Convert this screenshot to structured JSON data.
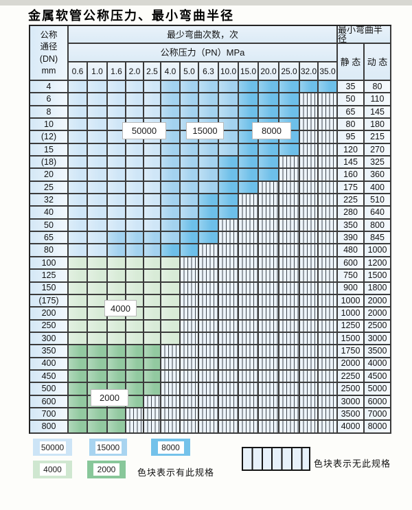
{
  "title": "金属软管公称压力、最小弯曲半径",
  "colors": {
    "zone_50000": "#cfe6f7",
    "zone_15000": "#a3d2ef",
    "zone_8000": "#6dbfe9",
    "zone_4000": "#d8ebd7",
    "zone_2000": "#92c9a0",
    "hatch_bg": "#edf4fa",
    "grid_line": "#3a3a3a"
  },
  "table": {
    "dn_header_lines": [
      "公称",
      "通径",
      "(DN)",
      "mm"
    ],
    "bend_cycles_header": "最少弯曲次数，次",
    "pressure_header": "公称压力（PN）MPa",
    "pressure_columns": [
      "0.6",
      "1.0",
      "1.6",
      "2.0",
      "2.5",
      "4.0",
      "5.0",
      "6.3",
      "10.0",
      "15.0",
      "20.0",
      "25.0",
      "32.0",
      "35.0"
    ],
    "radius_header": "最小弯曲半径",
    "static_header": "静 态",
    "dynamic_header": "动 态",
    "zone_codes": {
      "L": "50000",
      "M": "15000",
      "D": "8000",
      "G": "4000",
      "E": "2000",
      "X": "无此规格"
    },
    "rows": [
      {
        "dn": "4",
        "cells": [
          "L",
          "L",
          "L",
          "L",
          "L",
          "M",
          "M",
          "M",
          "M",
          "D",
          "D",
          "D",
          "D",
          "D"
        ],
        "static": "35",
        "dynamic": "80"
      },
      {
        "dn": "6",
        "cells": [
          "L",
          "L",
          "L",
          "L",
          "L",
          "M",
          "M",
          "M",
          "M",
          "D",
          "D",
          "D",
          "X",
          "X"
        ],
        "static": "50",
        "dynamic": "110"
      },
      {
        "dn": "8",
        "cells": [
          "L",
          "L",
          "L",
          "L",
          "L",
          "M",
          "M",
          "M",
          "M",
          "D",
          "D",
          "D",
          "X",
          "X"
        ],
        "static": "65",
        "dynamic": "145"
      },
      {
        "dn": "10",
        "cells": [
          "L",
          "L",
          "L",
          "L",
          "L",
          "M",
          "M",
          "M",
          "M",
          "D",
          "D",
          "D",
          "X",
          "X"
        ],
        "static": "80",
        "dynamic": "180"
      },
      {
        "dn": "(12)",
        "cells": [
          "L",
          "L",
          "L",
          "L",
          "L",
          "M",
          "M",
          "M",
          "M",
          "D",
          "D",
          "D",
          "X",
          "X"
        ],
        "static": "95",
        "dynamic": "215"
      },
      {
        "dn": "15",
        "cells": [
          "L",
          "L",
          "L",
          "L",
          "L",
          "M",
          "M",
          "M",
          "M",
          "D",
          "D",
          "D",
          "X",
          "X"
        ],
        "static": "120",
        "dynamic": "270"
      },
      {
        "dn": "(18)",
        "cells": [
          "L",
          "L",
          "L",
          "L",
          "L",
          "M",
          "M",
          "M",
          "D",
          "D",
          "D",
          "X",
          "X",
          "X"
        ],
        "static": "145",
        "dynamic": "325"
      },
      {
        "dn": "20",
        "cells": [
          "L",
          "L",
          "L",
          "L",
          "L",
          "M",
          "M",
          "M",
          "D",
          "D",
          "D",
          "X",
          "X",
          "X"
        ],
        "static": "160",
        "dynamic": "360"
      },
      {
        "dn": "25",
        "cells": [
          "L",
          "L",
          "L",
          "L",
          "L",
          "M",
          "M",
          "M",
          "D",
          "D",
          "X",
          "X",
          "X",
          "X"
        ],
        "static": "175",
        "dynamic": "400"
      },
      {
        "dn": "32",
        "cells": [
          "L",
          "L",
          "L",
          "L",
          "L",
          "M",
          "M",
          "D",
          "D",
          "X",
          "X",
          "X",
          "X",
          "X"
        ],
        "static": "225",
        "dynamic": "510"
      },
      {
        "dn": "40",
        "cells": [
          "L",
          "L",
          "L",
          "L",
          "L",
          "M",
          "M",
          "D",
          "D",
          "X",
          "X",
          "X",
          "X",
          "X"
        ],
        "static": "280",
        "dynamic": "640"
      },
      {
        "dn": "50",
        "cells": [
          "L",
          "L",
          "L",
          "L",
          "L",
          "M",
          "D",
          "D",
          "X",
          "X",
          "X",
          "X",
          "X",
          "X"
        ],
        "static": "350",
        "dynamic": "800"
      },
      {
        "dn": "65",
        "cells": [
          "L",
          "L",
          "M",
          "M",
          "M",
          "M",
          "D",
          "D",
          "X",
          "X",
          "X",
          "X",
          "X",
          "X"
        ],
        "static": "390",
        "dynamic": "845"
      },
      {
        "dn": "80",
        "cells": [
          "L",
          "L",
          "M",
          "M",
          "M",
          "D",
          "D",
          "X",
          "X",
          "X",
          "X",
          "X",
          "X",
          "X"
        ],
        "static": "480",
        "dynamic": "1000"
      },
      {
        "dn": "100",
        "cells": [
          "G",
          "G",
          "G",
          "G",
          "G",
          "G",
          "X",
          "X",
          "X",
          "X",
          "X",
          "X",
          "X",
          "X"
        ],
        "static": "600",
        "dynamic": "1200"
      },
      {
        "dn": "125",
        "cells": [
          "G",
          "G",
          "G",
          "G",
          "G",
          "G",
          "X",
          "X",
          "X",
          "X",
          "X",
          "X",
          "X",
          "X"
        ],
        "static": "750",
        "dynamic": "1500"
      },
      {
        "dn": "150",
        "cells": [
          "G",
          "G",
          "G",
          "G",
          "G",
          "G",
          "X",
          "X",
          "X",
          "X",
          "X",
          "X",
          "X",
          "X"
        ],
        "static": "900",
        "dynamic": "1800"
      },
      {
        "dn": "(175)",
        "cells": [
          "G",
          "G",
          "G",
          "G",
          "G",
          "G",
          "X",
          "X",
          "X",
          "X",
          "X",
          "X",
          "X",
          "X"
        ],
        "static": "1000",
        "dynamic": "2000"
      },
      {
        "dn": "200",
        "cells": [
          "G",
          "G",
          "G",
          "G",
          "G",
          "G",
          "X",
          "X",
          "X",
          "X",
          "X",
          "X",
          "X",
          "X"
        ],
        "static": "1000",
        "dynamic": "2000"
      },
      {
        "dn": "250",
        "cells": [
          "G",
          "G",
          "G",
          "G",
          "G",
          "G",
          "X",
          "X",
          "X",
          "X",
          "X",
          "X",
          "X",
          "X"
        ],
        "static": "1250",
        "dynamic": "2500"
      },
      {
        "dn": "300",
        "cells": [
          "G",
          "G",
          "G",
          "G",
          "G",
          "G",
          "X",
          "X",
          "X",
          "X",
          "X",
          "X",
          "X",
          "X"
        ],
        "static": "1500",
        "dynamic": "3000"
      },
      {
        "dn": "350",
        "cells": [
          "E",
          "E",
          "E",
          "E",
          "E",
          "X",
          "X",
          "X",
          "X",
          "X",
          "X",
          "X",
          "X",
          "X"
        ],
        "static": "1750",
        "dynamic": "3500"
      },
      {
        "dn": "400",
        "cells": [
          "E",
          "E",
          "E",
          "E",
          "E",
          "X",
          "X",
          "X",
          "X",
          "X",
          "X",
          "X",
          "X",
          "X"
        ],
        "static": "2000",
        "dynamic": "4000"
      },
      {
        "dn": "450",
        "cells": [
          "E",
          "E",
          "E",
          "E",
          "E",
          "X",
          "X",
          "X",
          "X",
          "X",
          "X",
          "X",
          "X",
          "X"
        ],
        "static": "2250",
        "dynamic": "4500"
      },
      {
        "dn": "500",
        "cells": [
          "E",
          "E",
          "E",
          "E",
          "E",
          "X",
          "X",
          "X",
          "X",
          "X",
          "X",
          "X",
          "X",
          "X"
        ],
        "static": "2500",
        "dynamic": "5000"
      },
      {
        "dn": "600",
        "cells": [
          "E",
          "E",
          "E",
          "E",
          "X",
          "X",
          "X",
          "X",
          "X",
          "X",
          "X",
          "X",
          "X",
          "X"
        ],
        "static": "3000",
        "dynamic": "6000"
      },
      {
        "dn": "700",
        "cells": [
          "E",
          "E",
          "E",
          "X",
          "X",
          "X",
          "X",
          "X",
          "X",
          "X",
          "X",
          "X",
          "X",
          "X"
        ],
        "static": "3500",
        "dynamic": "7000"
      },
      {
        "dn": "800",
        "cells": [
          "E",
          "E",
          "E",
          "X",
          "X",
          "X",
          "X",
          "X",
          "X",
          "X",
          "X",
          "X",
          "X",
          "X"
        ],
        "static": "4000",
        "dynamic": "8000"
      }
    ]
  },
  "region_labels": [
    {
      "text": "50000"
    },
    {
      "text": "15000"
    },
    {
      "text": "8000"
    },
    {
      "text": "4000"
    },
    {
      "text": "2000"
    }
  ],
  "legend": {
    "chips": [
      {
        "value": "50000",
        "color": "#cce4f6"
      },
      {
        "value": "15000",
        "color": "#a8d4f0"
      },
      {
        "value": "8000",
        "color": "#74c2ea"
      },
      {
        "value": "4000",
        "color": "#cfe7d0"
      },
      {
        "value": "2000",
        "color": "#88c79a"
      }
    ],
    "has_spec_text": "色块表示有此规格",
    "no_spec_text": "色块表示无此规格"
  }
}
